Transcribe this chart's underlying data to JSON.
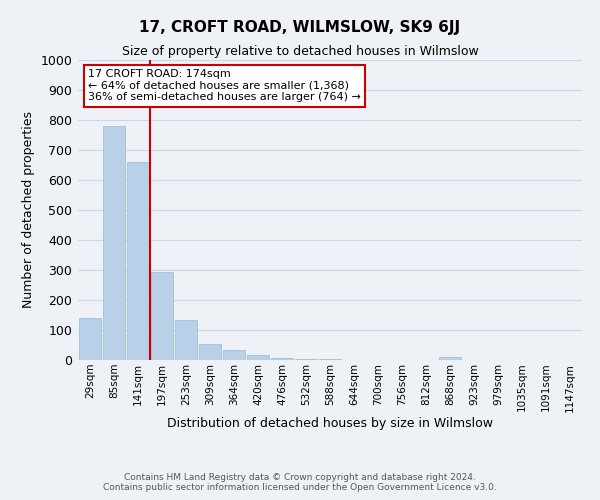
{
  "title": "17, CROFT ROAD, WILMSLOW, SK9 6JJ",
  "subtitle": "Size of property relative to detached houses in Wilmslow",
  "xlabel": "Distribution of detached houses by size in Wilmslow",
  "ylabel": "Number of detached properties",
  "bar_labels": [
    "29sqm",
    "85sqm",
    "141sqm",
    "197sqm",
    "253sqm",
    "309sqm",
    "364sqm",
    "420sqm",
    "476sqm",
    "532sqm",
    "588sqm",
    "644sqm",
    "700sqm",
    "756sqm",
    "812sqm",
    "868sqm",
    "923sqm",
    "979sqm",
    "1035sqm",
    "1091sqm",
    "1147sqm"
  ],
  "bar_values": [
    140,
    780,
    660,
    295,
    133,
    55,
    33,
    18,
    8,
    5,
    2,
    0,
    0,
    0,
    0,
    10,
    0,
    0,
    0,
    0,
    0
  ],
  "bar_color": "#b8d0e8",
  "bar_edge_color": "#9ab8d4",
  "vline_color": "#cc0000",
  "annotation_title": "17 CROFT ROAD: 174sqm",
  "annotation_line1": "← 64% of detached houses are smaller (1,368)",
  "annotation_line2": "36% of semi-detached houses are larger (764) →",
  "annotation_box_color": "#ffffff",
  "annotation_box_edge": "#cc0000",
  "ylim": [
    0,
    1000
  ],
  "grid_color": "#c8d8e8",
  "bg_color": "#eef2f7",
  "footer1": "Contains HM Land Registry data © Crown copyright and database right 2024.",
  "footer2": "Contains public sector information licensed under the Open Government Licence v3.0."
}
